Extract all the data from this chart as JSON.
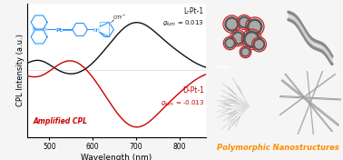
{
  "background_color": "#f5f5f5",
  "plot_bg": "#ffffff",
  "title_right": "Polymorphic Nanostructures",
  "title_right_color": "#FF8C00",
  "ylabel": "CPL Intensity (a.u.)",
  "xlabel": "Wavelength (nm)",
  "xlim": [
    450,
    860
  ],
  "label_L": "L-Pt-1",
  "label_D": "D-Pt-1",
  "amplified_cpl_text": "Amplified CPL",
  "amplified_cpl_color": "#cc0000",
  "line_color_L": "#111111",
  "line_color_D": "#cc0000",
  "chem_structure_color": "#1E90FF",
  "vesicle_color": "#cc2222",
  "img_bg_tl": "#888888",
  "img_bg_tr": "#d8d8d8",
  "img_bg_bl": "#707070",
  "img_bg_br": "#b8b8b8"
}
